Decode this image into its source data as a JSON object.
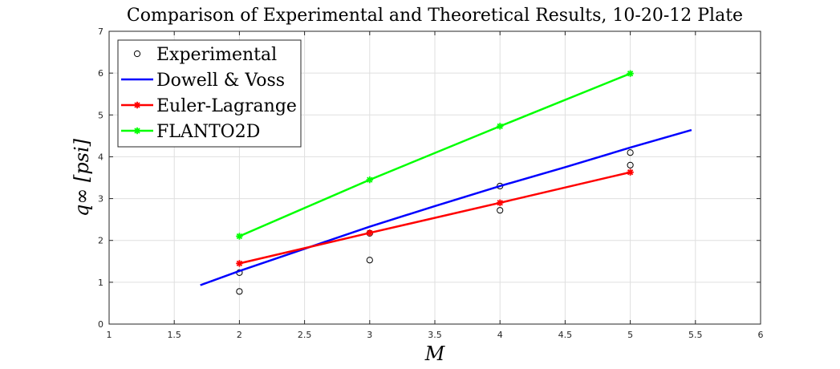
{
  "chart_data": {
    "type": "line",
    "title": "Comparison of Experimental and Theoretical Results, 10-20-12 Plate",
    "xlabel": "M",
    "ylabel": "q∞ [psi]",
    "xlim": [
      1,
      6
    ],
    "ylim": [
      0,
      7
    ],
    "xticks": [
      "1",
      "1.5",
      "2",
      "2.5",
      "3",
      "3.5",
      "4",
      "4.5",
      "5",
      "5.5",
      "6"
    ],
    "yticks": [
      "0",
      "1",
      "2",
      "3",
      "4",
      "5",
      "6",
      "7"
    ],
    "grid": true,
    "legend_position": "top-left",
    "series": [
      {
        "name": "Experimental",
        "style": "markers",
        "marker": "circle",
        "color": "#000000",
        "points": [
          [
            2,
            0.78
          ],
          [
            2,
            1.23
          ],
          [
            3,
            1.53
          ],
          [
            3,
            2.17
          ],
          [
            4,
            2.72
          ],
          [
            4,
            3.3
          ],
          [
            5,
            3.8
          ],
          [
            5,
            4.1
          ]
        ]
      },
      {
        "name": "Dowell & Voss",
        "style": "line",
        "marker": "none",
        "color": "#0000ff",
        "points": [
          [
            1.7,
            0.93
          ],
          [
            2.0,
            1.27
          ],
          [
            2.5,
            1.8
          ],
          [
            3.0,
            2.33
          ],
          [
            3.5,
            2.82
          ],
          [
            4.0,
            3.3
          ],
          [
            4.5,
            3.75
          ],
          [
            5.0,
            4.22
          ],
          [
            5.47,
            4.64
          ]
        ]
      },
      {
        "name": "Euler-Lagrange",
        "style": "line+markers",
        "marker": "asterisk",
        "color": "#ff0000",
        "points": [
          [
            2,
            1.45
          ],
          [
            3,
            2.18
          ],
          [
            4,
            2.9
          ],
          [
            5,
            3.63
          ]
        ]
      },
      {
        "name": "FLANTO2D",
        "style": "line+markers",
        "marker": "asterisk",
        "color": "#00ff00",
        "points": [
          [
            2,
            2.1
          ],
          [
            3,
            3.45
          ],
          [
            4,
            4.73
          ],
          [
            5,
            5.99
          ]
        ]
      }
    ]
  }
}
